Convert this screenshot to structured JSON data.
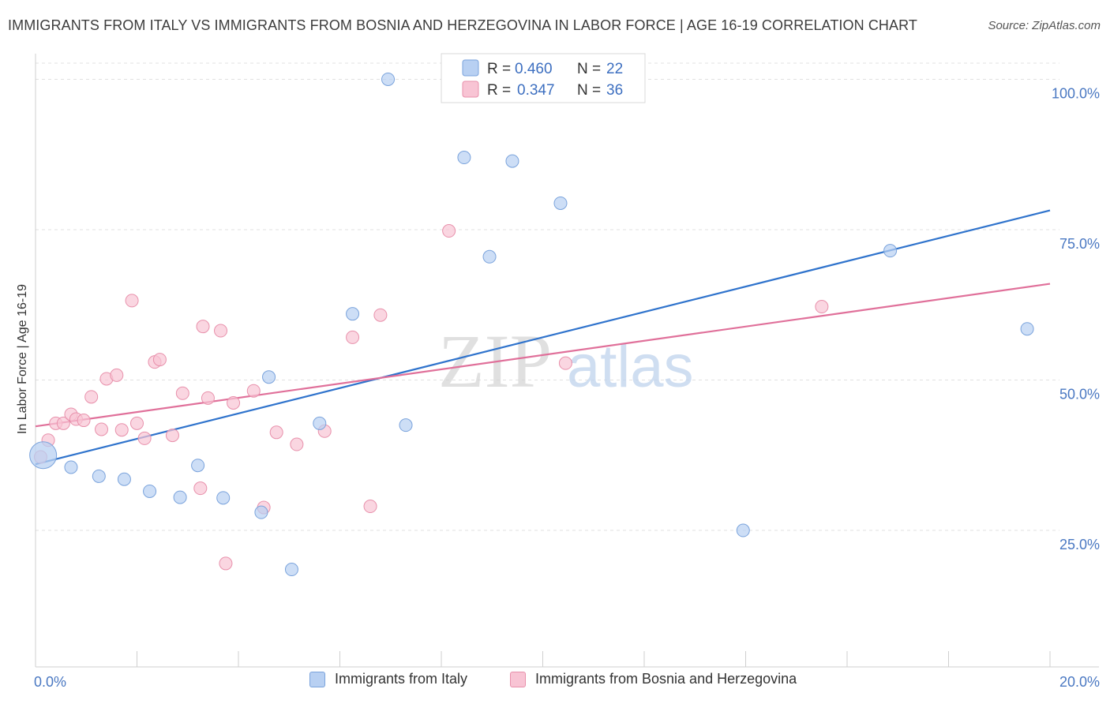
{
  "title": "IMMIGRANTS FROM ITALY VS IMMIGRANTS FROM BOSNIA AND HERZEGOVINA IN LABOR FORCE | AGE 16-19 CORRELATION CHART",
  "source": "Source: ZipAtlas.com",
  "watermark": {
    "zip": "ZIP",
    "atlas": "atlas"
  },
  "legend": {
    "r_label": "R =",
    "n_label": "N =",
    "italy": {
      "r": "0.460",
      "n": "22"
    },
    "bosnia": {
      "r": "0.347",
      "n": "36"
    }
  },
  "colors": {
    "italy_fill": "#b8d0f2",
    "italy_stroke": "#7aa3dc",
    "italy_line": "#2f73cc",
    "bosnia_fill": "#f8c4d4",
    "bosnia_stroke": "#e890ab",
    "bosnia_line": "#e0709a"
  },
  "chart_data": {
    "type": "scatter",
    "xlabel": "",
    "ylabel": "In Labor Force | Age 16-19",
    "xlim": [
      0,
      20
    ],
    "ylim": [
      2.3,
      104
    ],
    "x_tick_labels": [
      "0.0%",
      "20.0%"
    ],
    "y_ticks": [
      25,
      50,
      75,
      100
    ],
    "y_tick_labels": [
      "25.0%",
      "50.0%",
      "75.0%",
      "100.0%"
    ],
    "grid": true,
    "legend_position": "top-center",
    "series": [
      {
        "name": "Immigrants from Italy",
        "points": [
          [
            0.15,
            37.5
          ],
          [
            0.7,
            35.5
          ],
          [
            1.25,
            34
          ],
          [
            1.75,
            33.5
          ],
          [
            2.25,
            31.5
          ],
          [
            2.85,
            30.5
          ],
          [
            3.2,
            35.8
          ],
          [
            3.7,
            30.4
          ],
          [
            4.45,
            28
          ],
          [
            4.6,
            50.5
          ],
          [
            5.05,
            18.5
          ],
          [
            5.6,
            42.8
          ],
          [
            6.25,
            61
          ],
          [
            6.95,
            100
          ],
          [
            7.3,
            42.5
          ],
          [
            8.45,
            87
          ],
          [
            8.95,
            70.5
          ],
          [
            9.4,
            86.4
          ],
          [
            10.35,
            79.4
          ],
          [
            13.95,
            25
          ],
          [
            16.85,
            71.5
          ],
          [
            19.55,
            58.5
          ]
        ],
        "trend": [
          [
            0,
            36
          ],
          [
            20,
            78.2
          ]
        ]
      },
      {
        "name": "Immigrants from Bosnia and Herzegovina",
        "points": [
          [
            0.1,
            37.2
          ],
          [
            0.25,
            40
          ],
          [
            0.4,
            42.8
          ],
          [
            0.55,
            42.8
          ],
          [
            0.7,
            44.3
          ],
          [
            0.8,
            43.5
          ],
          [
            0.95,
            43.3
          ],
          [
            1.1,
            47.2
          ],
          [
            1.3,
            41.8
          ],
          [
            1.4,
            50.2
          ],
          [
            1.6,
            50.8
          ],
          [
            1.7,
            41.7
          ],
          [
            1.9,
            63.2
          ],
          [
            2.0,
            42.8
          ],
          [
            2.15,
            40.3
          ],
          [
            2.35,
            53
          ],
          [
            2.45,
            53.4
          ],
          [
            2.7,
            40.8
          ],
          [
            2.9,
            47.8
          ],
          [
            3.25,
            32
          ],
          [
            3.3,
            58.9
          ],
          [
            3.4,
            47
          ],
          [
            3.65,
            58.2
          ],
          [
            3.75,
            19.5
          ],
          [
            3.9,
            46.2
          ],
          [
            4.3,
            48.2
          ],
          [
            4.5,
            28.8
          ],
          [
            4.75,
            41.3
          ],
          [
            5.15,
            39.3
          ],
          [
            5.7,
            41.5
          ],
          [
            6.25,
            57.1
          ],
          [
            6.6,
            29
          ],
          [
            6.8,
            60.8
          ],
          [
            8.15,
            74.8
          ],
          [
            10.45,
            52.8
          ],
          [
            15.5,
            62.2
          ]
        ],
        "trend": [
          [
            0,
            42.3
          ],
          [
            20,
            66
          ]
        ]
      }
    ]
  }
}
